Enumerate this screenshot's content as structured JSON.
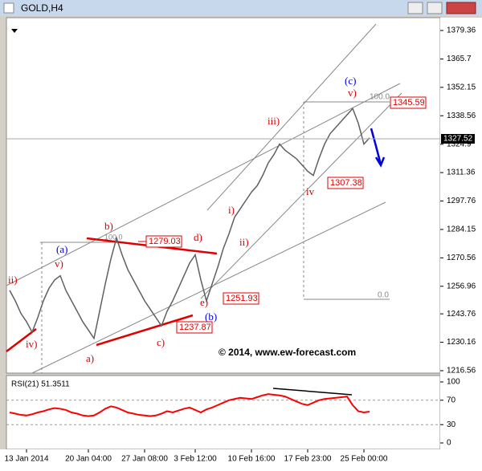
{
  "chart_data": [
    {
      "type": "line",
      "title": "GOLD,H4",
      "color": "#606060",
      "categories": [
        null,
        null,
        null,
        "13 Jan 2014",
        null,
        null,
        null,
        null,
        null,
        null,
        null,
        null,
        null,
        null,
        "20 Jan 04:00",
        null,
        null,
        null,
        null,
        null,
        null,
        null,
        null,
        null,
        "27 Jan 08:00",
        null,
        null,
        null,
        null,
        null,
        null,
        null,
        null,
        "3 Feb 12:00",
        null,
        null,
        null,
        null,
        null,
        null,
        null,
        null,
        null,
        "10 Feb 16:00",
        null,
        null,
        null,
        null,
        null,
        null,
        null,
        null,
        null,
        "17 Feb 23:00",
        null,
        null,
        null,
        null,
        null,
        null,
        null,
        null,
        null,
        "25 Feb 00:00",
        null
      ],
      "values": [
        1255,
        1250,
        1244,
        1240,
        1235,
        1242,
        1250,
        1256,
        1260,
        1262,
        1255,
        1250,
        1245,
        1240,
        1236,
        1232,
        1245,
        1258,
        1270,
        1280,
        1272,
        1265,
        1260,
        1255,
        1250,
        1246,
        1242,
        1238,
        1245,
        1250,
        1256,
        1262,
        1268,
        1272,
        1260,
        1250,
        1258,
        1266,
        1275,
        1282,
        1290,
        1294,
        1298,
        1302,
        1305,
        1310,
        1316,
        1320,
        1325,
        1322,
        1320,
        1318,
        1315,
        1312,
        1310,
        1318,
        1325,
        1330,
        1333,
        1336,
        1339,
        1342,
        1335,
        1325,
        1328
      ],
      "ylim": [
        1215.4,
        1385.5
      ],
      "yticks": [
        1379.36,
        1365.7,
        1352.15,
        1338.56,
        1324.9,
        1311.36,
        1297.76,
        1284.15,
        1270.56,
        1256.96,
        1243.76,
        1230.16,
        1216.56
      ],
      "last_price": 1327.52,
      "annotations": [
        "ii)",
        "iv)",
        "v)",
        "(a)",
        "b)",
        "a)",
        "c)",
        "d)",
        "e)",
        "(b)",
        "i)",
        "ii)",
        "iii)",
        "iv",
        "(c)",
        "v)",
        "1279.03",
        "1251.93",
        "1237.87",
        "1307.38",
        "1345.59",
        "100.0",
        "0.0",
        "100.0",
        "© 2014, www.ew-forecast.com"
      ]
    },
    {
      "type": "line",
      "title": "RSI(21) 51.3511",
      "color": "#ff0000",
      "values": [
        50,
        48,
        46,
        45,
        47,
        50,
        52,
        55,
        57,
        56,
        54,
        50,
        48,
        45,
        44,
        45,
        50,
        56,
        60,
        58,
        54,
        50,
        48,
        46,
        45,
        44,
        45,
        48,
        52,
        50,
        53,
        56,
        58,
        54,
        50,
        55,
        58,
        62,
        66,
        70,
        72,
        74,
        73,
        72,
        75,
        78,
        80,
        79,
        78,
        76,
        72,
        68,
        64,
        62,
        66,
        70,
        72,
        73,
        74,
        75,
        76,
        62,
        52,
        50,
        51.3511
      ],
      "ylim": [
        -10.5,
        110.5
      ],
      "yticks": [
        100,
        70,
        30,
        0
      ]
    }
  ]
}
